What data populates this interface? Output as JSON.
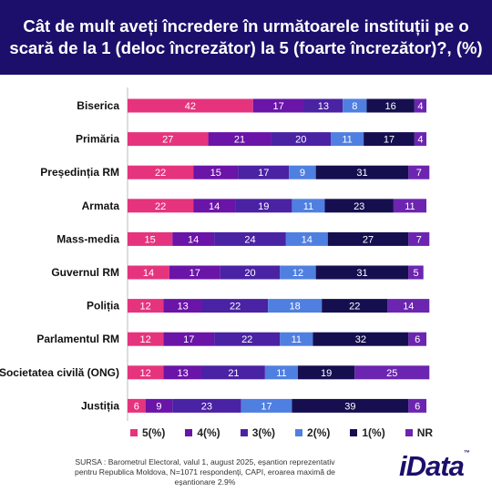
{
  "header": {
    "title": "Cât de mult aveți încredere în următoarele instituții pe o scară de la 1 (deloc încrezător) la 5 (foarte încrezător)?, (%)"
  },
  "chart_data": {
    "type": "bar",
    "orientation": "horizontal",
    "stacked": true,
    "categories": [
      "Biserica",
      "Primăria",
      "Președinția RM",
      "Armata",
      "Mass-media",
      "Guvernul RM",
      "Poliția",
      "Parlamentul RM",
      "Societatea civilă (ONG)",
      "Justiția"
    ],
    "series": [
      {
        "name": "5(%)",
        "color": "#e5347d",
        "values": [
          42,
          27,
          22,
          22,
          15,
          14,
          12,
          12,
          12,
          6
        ]
      },
      {
        "name": "4(%)",
        "color": "#6a14a8",
        "values": [
          17,
          21,
          15,
          14,
          14,
          17,
          13,
          17,
          13,
          9
        ]
      },
      {
        "name": "3(%)",
        "color": "#4a22a4",
        "values": [
          13,
          20,
          17,
          19,
          24,
          20,
          22,
          22,
          21,
          23
        ]
      },
      {
        "name": "2(%)",
        "color": "#4f7fe0",
        "values": [
          8,
          11,
          9,
          11,
          14,
          12,
          18,
          11,
          11,
          17
        ]
      },
      {
        "name": "1(%)",
        "color": "#150f50",
        "values": [
          16,
          17,
          31,
          23,
          27,
          31,
          22,
          32,
          19,
          39
        ]
      },
      {
        "name": "NR",
        "color": "#6c25b0",
        "values": [
          4,
          4,
          7,
          11,
          7,
          5,
          14,
          6,
          25,
          6
        ]
      }
    ],
    "xlim": [
      0,
      100
    ],
    "grid": false,
    "legend": "bottom"
  },
  "source": {
    "text": "SURSA : Barometrul Electoral, valul 1, august 2025, eșantion reprezentativ pentru Republica Moldova, N=1071 respondenți, CAPI, eroarea maximă de eșantionare 2.9%"
  },
  "logo": {
    "text": "iData",
    "mark": "™"
  }
}
